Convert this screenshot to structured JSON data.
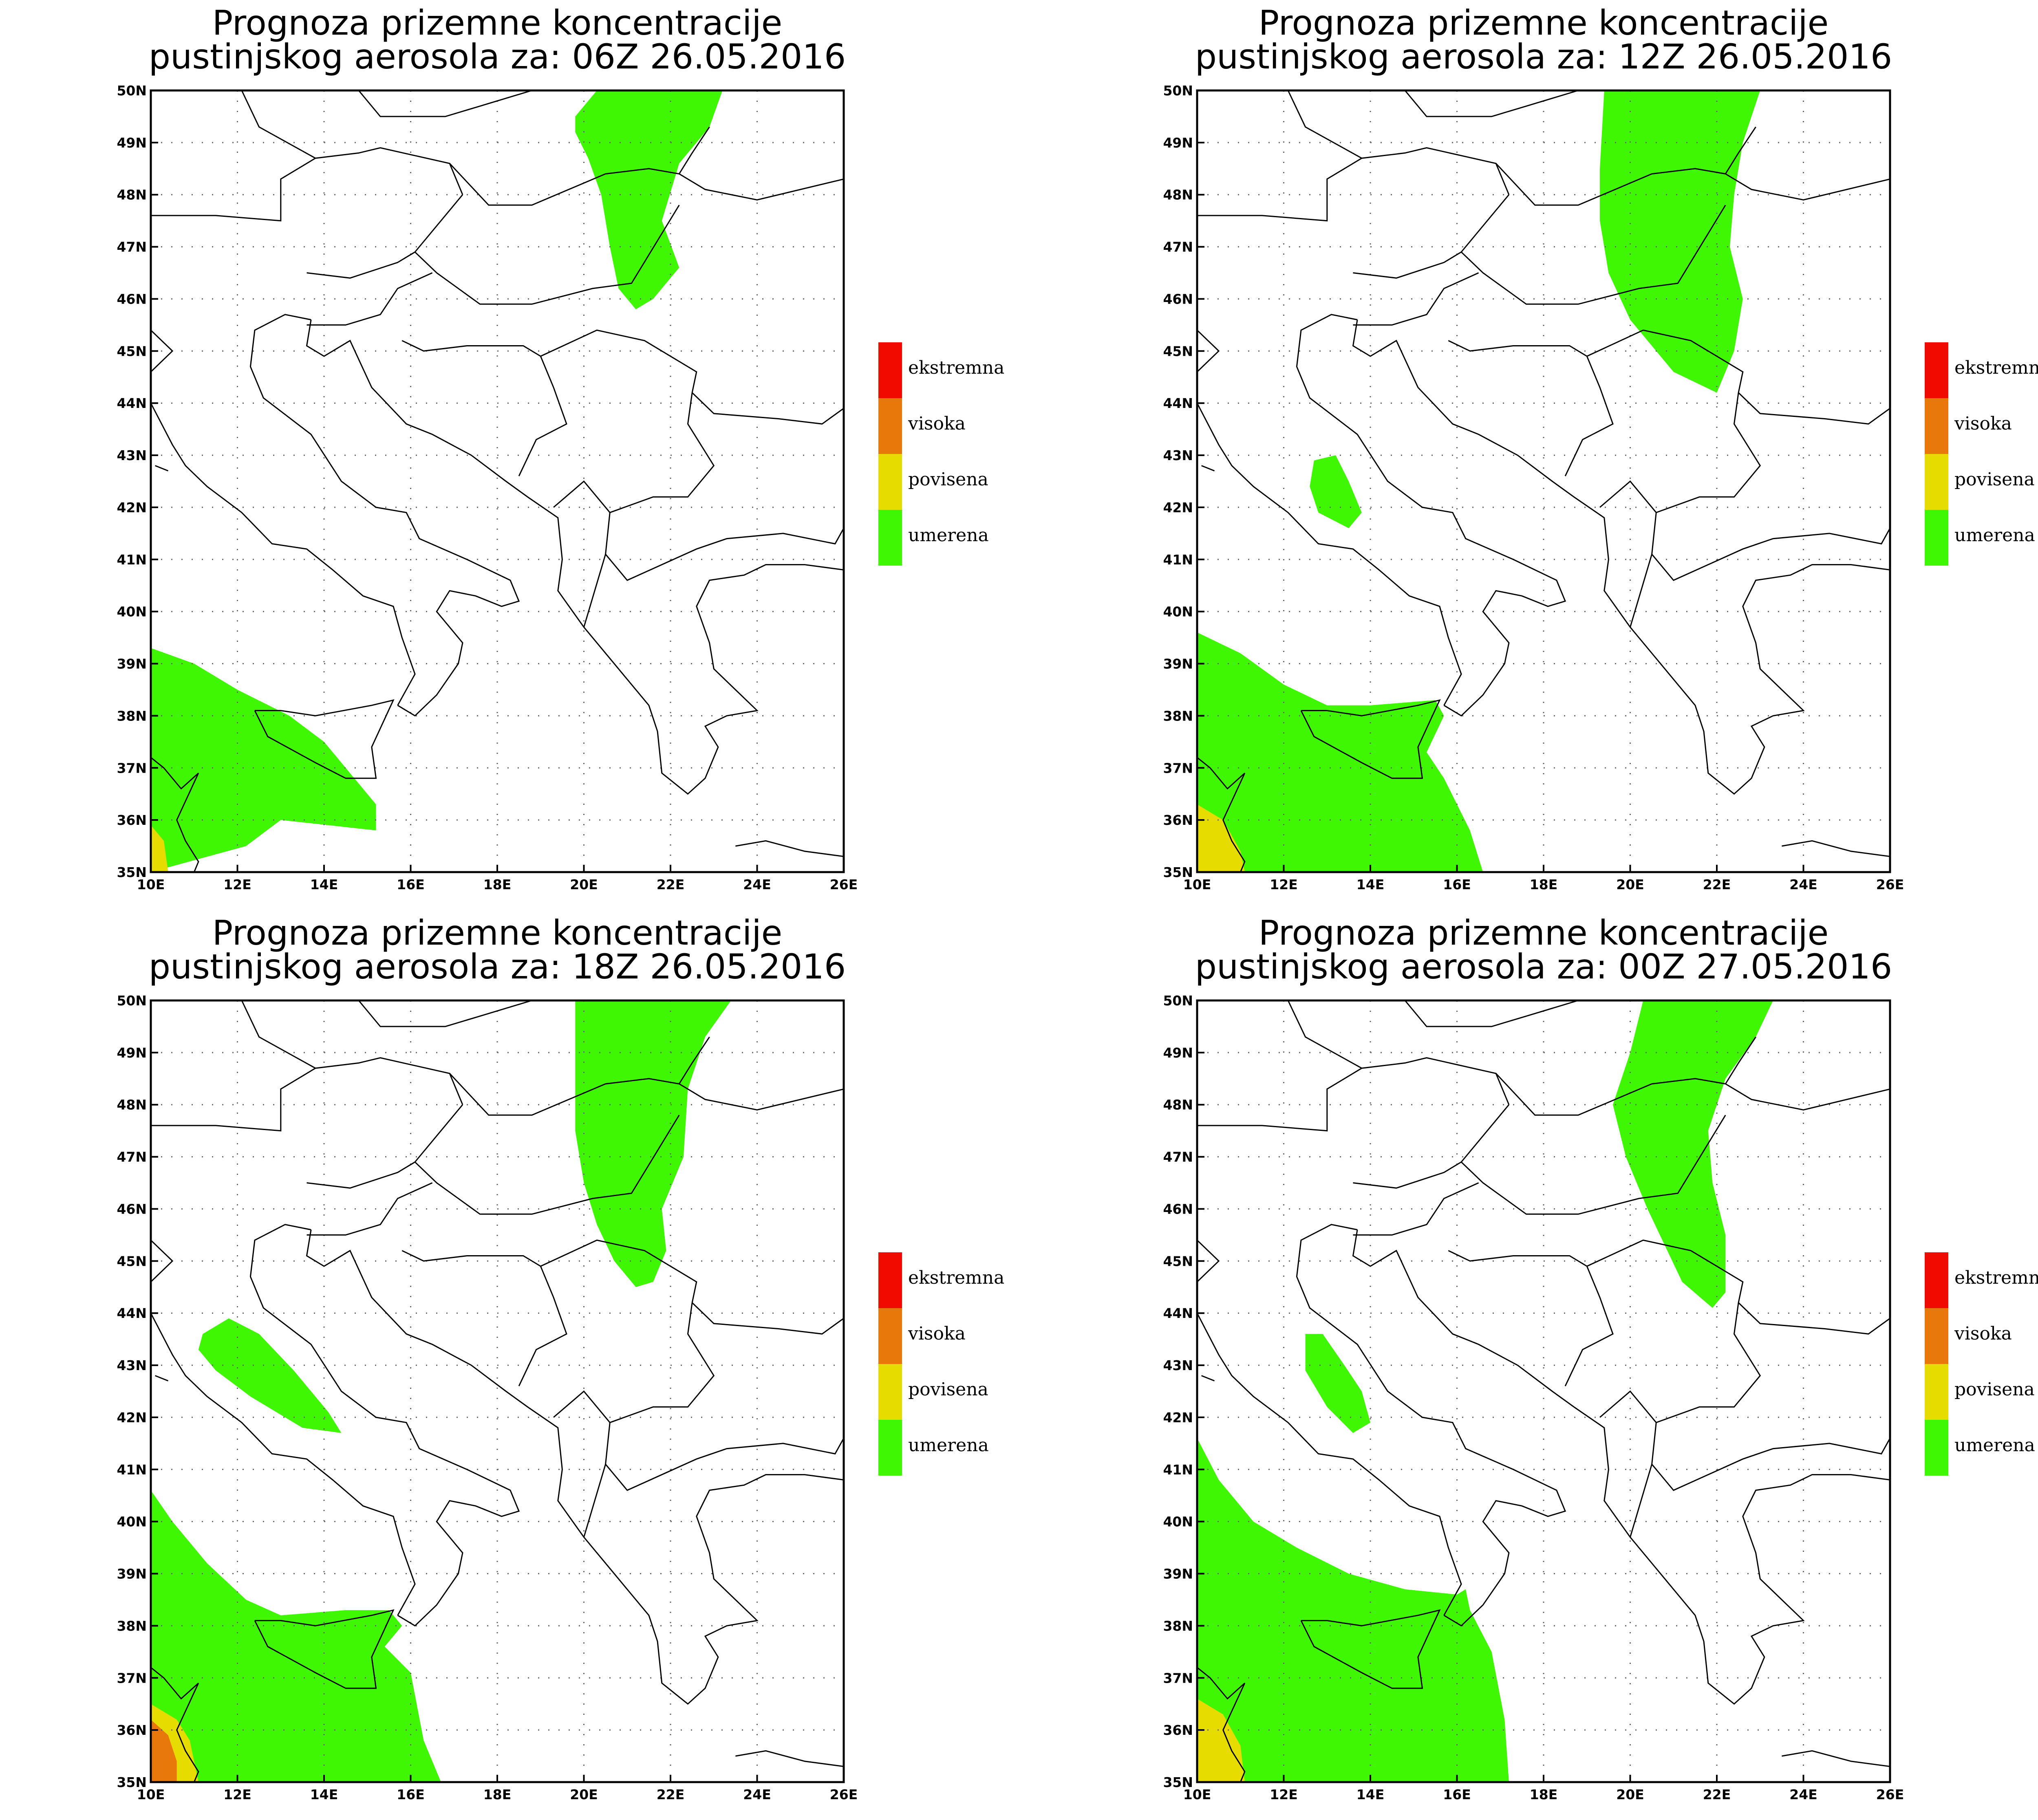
{
  "map_extent": {
    "lon": [
      10,
      26
    ],
    "lat": [
      35,
      50
    ]
  },
  "x_ticks": [
    "10E",
    "12E",
    "14E",
    "16E",
    "18E",
    "20E",
    "22E",
    "24E",
    "26E"
  ],
  "y_ticks": [
    "35N",
    "36N",
    "37N",
    "38N",
    "39N",
    "40N",
    "41N",
    "42N",
    "43N",
    "44N",
    "45N",
    "46N",
    "47N",
    "48N",
    "49N",
    "50N"
  ],
  "colors": {
    "umerena": "#3ff703",
    "povisena": "#e6dc00",
    "visoka": "#e8780a",
    "ekstremna": "#f00a00"
  },
  "legend": [
    {
      "label": "ekstremna",
      "color": "#f00a00"
    },
    {
      "label": "visoka",
      "color": "#e8780a"
    },
    {
      "label": "povisena",
      "color": "#e6dc00"
    },
    {
      "label": "umerena",
      "color": "#3ff703"
    }
  ],
  "panels": [
    {
      "title_line1": "Prognoza prizemne koncentracije",
      "title_line2": "pustinjskog aerosola za: 06Z 26.05.2016",
      "plumes": [
        {
          "level": "umerena",
          "pts": [
            [
              19.8,
              49.5
            ],
            [
              20.3,
              50
            ],
            [
              23.2,
              50
            ],
            [
              22.9,
              49.3
            ],
            [
              22.2,
              48.6
            ],
            [
              21.8,
              47.5
            ],
            [
              22.2,
              46.6
            ],
            [
              21.6,
              46.0
            ],
            [
              21.2,
              45.8
            ],
            [
              20.8,
              46.2
            ],
            [
              20.6,
              47.0
            ],
            [
              20.4,
              48.0
            ],
            [
              20.1,
              48.7
            ],
            [
              19.8,
              49.2
            ]
          ]
        },
        {
          "level": "umerena",
          "pts": [
            [
              10,
              39.3
            ],
            [
              11.0,
              39.0
            ],
            [
              12.0,
              38.5
            ],
            [
              13.2,
              38.0
            ],
            [
              14.0,
              37.5
            ],
            [
              14.5,
              37.0
            ],
            [
              15.2,
              36.3
            ],
            [
              15.2,
              35.8
            ],
            [
              13.0,
              36.0
            ],
            [
              12.2,
              35.5
            ],
            [
              10,
              35
            ]
          ]
        },
        {
          "level": "povisena",
          "pts": [
            [
              10,
              35
            ],
            [
              10,
              35.9
            ],
            [
              10.3,
              35.6
            ],
            [
              10.4,
              35.0
            ]
          ]
        }
      ]
    },
    {
      "title_line1": "Prognoza prizemne koncentracije",
      "title_line2": "pustinjskog aerosola za: 12Z 26.05.2016",
      "plumes": [
        {
          "level": "umerena",
          "pts": [
            [
              19.4,
              50
            ],
            [
              23.0,
              50
            ],
            [
              22.6,
              49.0
            ],
            [
              22.4,
              48.0
            ],
            [
              22.3,
              47.0
            ],
            [
              22.6,
              46.0
            ],
            [
              22.4,
              45.0
            ],
            [
              22.0,
              44.2
            ],
            [
              21.0,
              44.6
            ],
            [
              20.0,
              45.6
            ],
            [
              19.5,
              46.5
            ],
            [
              19.3,
              47.5
            ],
            [
              19.3,
              48.5
            ]
          ]
        },
        {
          "level": "umerena",
          "pts": [
            [
              12.7,
              42.9
            ],
            [
              13.2,
              43.0
            ],
            [
              13.5,
              42.5
            ],
            [
              13.8,
              41.9
            ],
            [
              13.5,
              41.6
            ],
            [
              12.8,
              41.9
            ],
            [
              12.6,
              42.4
            ]
          ]
        },
        {
          "level": "umerena",
          "pts": [
            [
              10,
              39.6
            ],
            [
              11.0,
              39.2
            ],
            [
              12.0,
              38.6
            ],
            [
              13.0,
              38.2
            ],
            [
              14.0,
              38.2
            ],
            [
              15.5,
              38.3
            ],
            [
              15.7,
              38.0
            ],
            [
              15.3,
              37.3
            ],
            [
              15.7,
              36.8
            ],
            [
              16.3,
              35.8
            ],
            [
              16.6,
              35
            ],
            [
              10,
              35
            ]
          ]
        },
        {
          "level": "povisena",
          "pts": [
            [
              10,
              35
            ],
            [
              10,
              36.3
            ],
            [
              10.6,
              36.0
            ],
            [
              11.0,
              35.4
            ],
            [
              11.1,
              35.0
            ]
          ]
        }
      ]
    },
    {
      "title_line1": "Prognoza prizemne koncentracije",
      "title_line2": "pustinjskog aerosola za: 18Z 26.05.2016",
      "plumes": [
        {
          "level": "umerena",
          "pts": [
            [
              19.8,
              50
            ],
            [
              23.4,
              50
            ],
            [
              22.8,
              49.3
            ],
            [
              22.4,
              48.3
            ],
            [
              22.3,
              47.0
            ],
            [
              21.8,
              46.0
            ],
            [
              21.9,
              45.2
            ],
            [
              21.6,
              44.6
            ],
            [
              21.2,
              44.5
            ],
            [
              20.7,
              45.0
            ],
            [
              20.3,
              45.7
            ],
            [
              20.0,
              46.5
            ],
            [
              19.8,
              47.5
            ],
            [
              19.8,
              48.5
            ]
          ]
        },
        {
          "level": "umerena",
          "pts": [
            [
              11.2,
              43.6
            ],
            [
              11.8,
              43.9
            ],
            [
              12.5,
              43.6
            ],
            [
              13.3,
              42.9
            ],
            [
              14.1,
              42.1
            ],
            [
              14.4,
              41.7
            ],
            [
              13.5,
              41.8
            ],
            [
              12.3,
              42.4
            ],
            [
              11.5,
              42.9
            ],
            [
              11.1,
              43.3
            ]
          ]
        },
        {
          "level": "umerena",
          "pts": [
            [
              10,
              40.6
            ],
            [
              10.5,
              40.0
            ],
            [
              11.3,
              39.2
            ],
            [
              12.2,
              38.5
            ],
            [
              13.0,
              38.2
            ],
            [
              14.5,
              38.3
            ],
            [
              15.5,
              38.3
            ],
            [
              15.8,
              38.0
            ],
            [
              15.4,
              37.6
            ],
            [
              16.0,
              37.1
            ],
            [
              16.3,
              35.8
            ],
            [
              16.7,
              35
            ],
            [
              10,
              35
            ]
          ]
        },
        {
          "level": "povisena",
          "pts": [
            [
              10,
              35
            ],
            [
              10,
              36.5
            ],
            [
              10.6,
              36.2
            ],
            [
              10.9,
              35.8
            ],
            [
              11.1,
              35.0
            ]
          ]
        },
        {
          "level": "visoka",
          "pts": [
            [
              10,
              35
            ],
            [
              10,
              36.2
            ],
            [
              10.4,
              35.9
            ],
            [
              10.6,
              35.4
            ],
            [
              10.6,
              35.0
            ]
          ]
        }
      ]
    },
    {
      "title_line1": "Prognoza prizemne koncentracije",
      "title_line2": "pustinjskog aerosola za: 00Z 27.05.2016",
      "plumes": [
        {
          "level": "umerena",
          "pts": [
            [
              20.3,
              50
            ],
            [
              23.3,
              50
            ],
            [
              22.9,
              49.3
            ],
            [
              22.2,
              48.5
            ],
            [
              21.8,
              47.5
            ],
            [
              21.9,
              46.5
            ],
            [
              22.2,
              45.5
            ],
            [
              22.2,
              44.4
            ],
            [
              21.9,
              44.1
            ],
            [
              21.2,
              44.6
            ],
            [
              20.4,
              46.0
            ],
            [
              19.9,
              47.0
            ],
            [
              19.6,
              48.0
            ],
            [
              20.0,
              49.0
            ]
          ]
        },
        {
          "level": "umerena",
          "pts": [
            [
              12.5,
              43.6
            ],
            [
              12.9,
              43.6
            ],
            [
              13.4,
              43.0
            ],
            [
              13.8,
              42.5
            ],
            [
              14.0,
              41.9
            ],
            [
              13.6,
              41.7
            ],
            [
              13.0,
              42.2
            ],
            [
              12.5,
              42.9
            ]
          ]
        },
        {
          "level": "umerena",
          "pts": [
            [
              10,
              41.6
            ],
            [
              10.5,
              40.8
            ],
            [
              11.3,
              40.0
            ],
            [
              12.3,
              39.5
            ],
            [
              13.5,
              39.0
            ],
            [
              14.8,
              38.7
            ],
            [
              16.0,
              38.6
            ],
            [
              16.2,
              38.7
            ],
            [
              16.3,
              38.3
            ],
            [
              16.8,
              37.5
            ],
            [
              17.1,
              36.2
            ],
            [
              17.2,
              35
            ],
            [
              10,
              35
            ]
          ]
        },
        {
          "level": "povisena",
          "pts": [
            [
              10,
              35
            ],
            [
              10,
              36.6
            ],
            [
              10.6,
              36.3
            ],
            [
              11.0,
              35.7
            ],
            [
              11.1,
              35.0
            ]
          ]
        }
      ]
    }
  ]
}
